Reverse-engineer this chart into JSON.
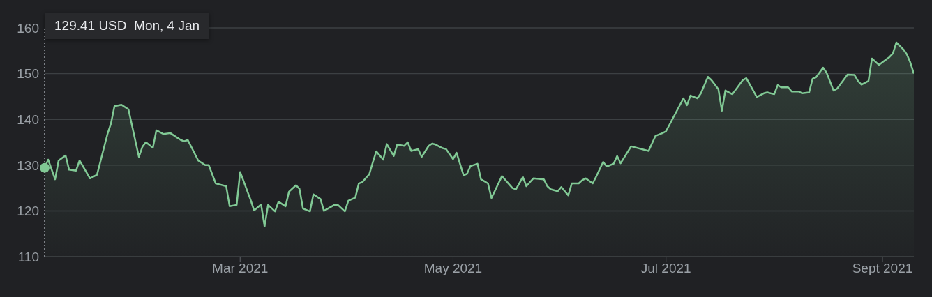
{
  "chart_data": {
    "type": "area",
    "x": [
      "2021-01-04",
      "2021-01-05",
      "2021-01-07",
      "2021-01-08",
      "2021-01-10",
      "2021-01-11",
      "2021-01-13",
      "2021-01-14",
      "2021-01-17",
      "2021-01-19",
      "2021-01-22",
      "2021-01-23",
      "2021-01-24",
      "2021-01-26",
      "2021-01-28",
      "2021-01-31",
      "2021-02-01",
      "2021-02-02",
      "2021-02-04",
      "2021-02-05",
      "2021-02-07",
      "2021-02-09",
      "2021-02-12",
      "2021-02-13",
      "2021-02-14",
      "2021-02-17",
      "2021-02-19",
      "2021-02-20",
      "2021-02-22",
      "2021-02-23",
      "2021-02-25",
      "2021-02-26",
      "2021-02-28",
      "2021-03-01",
      "2021-03-04",
      "2021-03-05",
      "2021-03-07",
      "2021-03-08",
      "2021-03-09",
      "2021-03-11",
      "2021-03-12",
      "2021-03-14",
      "2021-03-15",
      "2021-03-17",
      "2021-03-18",
      "2021-03-19",
      "2021-03-21",
      "2021-03-22",
      "2021-03-24",
      "2021-03-25",
      "2021-03-28",
      "2021-03-29",
      "2021-03-31",
      "2021-04-01",
      "2021-04-03",
      "2021-04-04",
      "2021-04-05",
      "2021-04-07",
      "2021-04-08",
      "2021-04-09",
      "2021-04-11",
      "2021-04-12",
      "2021-04-14",
      "2021-04-15",
      "2021-04-17",
      "2021-04-18",
      "2021-04-19",
      "2021-04-21",
      "2021-04-22",
      "2021-04-24",
      "2021-04-25",
      "2021-04-26",
      "2021-04-28",
      "2021-04-29",
      "2021-05-01",
      "2021-05-02",
      "2021-05-04",
      "2021-05-05",
      "2021-05-06",
      "2021-05-08",
      "2021-05-09",
      "2021-05-11",
      "2021-05-12",
      "2021-05-15",
      "2021-05-18",
      "2021-05-19",
      "2021-05-21",
      "2021-05-22",
      "2021-05-24",
      "2021-05-27",
      "2021-05-28",
      "2021-05-29",
      "2021-05-31",
      "2021-06-01",
      "2021-06-03",
      "2021-06-04",
      "2021-06-06",
      "2021-06-07",
      "2021-06-08",
      "2021-06-10",
      "2021-06-11",
      "2021-06-13",
      "2021-06-14",
      "2021-06-16",
      "2021-06-17",
      "2021-06-18",
      "2021-06-21",
      "2021-06-26",
      "2021-06-28",
      "2021-06-30",
      "2021-07-01",
      "2021-07-03",
      "2021-07-06",
      "2021-07-07",
      "2021-07-08",
      "2021-07-10",
      "2021-07-11",
      "2021-07-13",
      "2021-07-14",
      "2021-07-16",
      "2021-07-17",
      "2021-07-18",
      "2021-07-20",
      "2021-07-23",
      "2021-07-24",
      "2021-07-27",
      "2021-07-29",
      "2021-07-30",
      "2021-08-01",
      "2021-08-02",
      "2021-08-03",
      "2021-08-05",
      "2021-08-06",
      "2021-08-08",
      "2021-08-09",
      "2021-08-11",
      "2021-08-12",
      "2021-08-13",
      "2021-08-15",
      "2021-08-16",
      "2021-08-18",
      "2021-08-19",
      "2021-08-22",
      "2021-08-24",
      "2021-08-25",
      "2021-08-26",
      "2021-08-28",
      "2021-08-29",
      "2021-08-31",
      "2021-09-01",
      "2021-09-03",
      "2021-09-04",
      "2021-09-05",
      "2021-09-07",
      "2021-09-08",
      "2021-09-09",
      "2021-09-10"
    ],
    "values": [
      129.41,
      131.2,
      126.9,
      131.0,
      132.1,
      129.0,
      128.8,
      131.0,
      127.1,
      127.9,
      136.8,
      139.1,
      142.9,
      143.2,
      142.2,
      131.8,
      134.0,
      135.0,
      133.8,
      137.6,
      136.8,
      137.0,
      135.5,
      135.2,
      135.5,
      131.0,
      130.0,
      130.0,
      126.0,
      125.8,
      125.4,
      121.0,
      121.3,
      128.5,
      122.4,
      120.1,
      121.4,
      116.6,
      121.3,
      119.9,
      122.0,
      121.0,
      124.2,
      125.6,
      124.8,
      120.5,
      119.9,
      123.6,
      122.6,
      120.0,
      121.3,
      121.3,
      119.9,
      122.2,
      122.9,
      126.0,
      126.3,
      128.0,
      130.6,
      133.0,
      131.2,
      134.6,
      132.0,
      134.5,
      134.2,
      135.0,
      133.1,
      133.5,
      131.8,
      134.2,
      134.7,
      134.5,
      133.7,
      133.5,
      131.3,
      132.7,
      127.8,
      128.1,
      129.8,
      130.3,
      126.9,
      126.0,
      122.8,
      127.6,
      125.0,
      124.7,
      127.4,
      125.4,
      127.1,
      126.9,
      125.4,
      124.7,
      124.3,
      125.2,
      123.4,
      126.0,
      126.0,
      126.7,
      127.1,
      126.0,
      127.5,
      130.7,
      129.7,
      130.3,
      132.0,
      130.4,
      134.1,
      133.1,
      136.4,
      137.0,
      137.4,
      140.3,
      144.6,
      143.1,
      145.2,
      144.6,
      145.7,
      149.3,
      148.6,
      146.6,
      141.9,
      146.3,
      145.5,
      148.6,
      149.0,
      144.9,
      145.7,
      145.9,
      145.5,
      147.5,
      147.0,
      147.0,
      146.1,
      146.1,
      145.7,
      145.9,
      148.9,
      149.2,
      151.3,
      150.2,
      146.3,
      146.7,
      149.8,
      149.7,
      148.4,
      147.6,
      148.4,
      153.3,
      151.9,
      152.5,
      153.6,
      154.4,
      156.8,
      155.3,
      154.2,
      152.4,
      150.0
    ],
    "color": "#81c995",
    "xlim": [
      "2021-01-04",
      "2021-09-10"
    ],
    "xticks": [
      {
        "value": "2021-03-01",
        "label": "Mar 2021"
      },
      {
        "value": "2021-05-01",
        "label": "May 2021"
      },
      {
        "value": "2021-07-01",
        "label": "Jul 2021"
      },
      {
        "value": "2021-09-01",
        "label": "Sept 2021"
      }
    ],
    "ylim": [
      110,
      160
    ],
    "yticks": [
      110,
      120,
      130,
      140,
      150,
      160
    ],
    "grid": "y",
    "ref_lines": [
      {
        "axis": "x",
        "value": "2021-01-04",
        "line_style": "dotted",
        "color": "#9aa0a6"
      }
    ],
    "annotations": [
      "129.41 USD  Mon, 4 Jan"
    ]
  }
}
